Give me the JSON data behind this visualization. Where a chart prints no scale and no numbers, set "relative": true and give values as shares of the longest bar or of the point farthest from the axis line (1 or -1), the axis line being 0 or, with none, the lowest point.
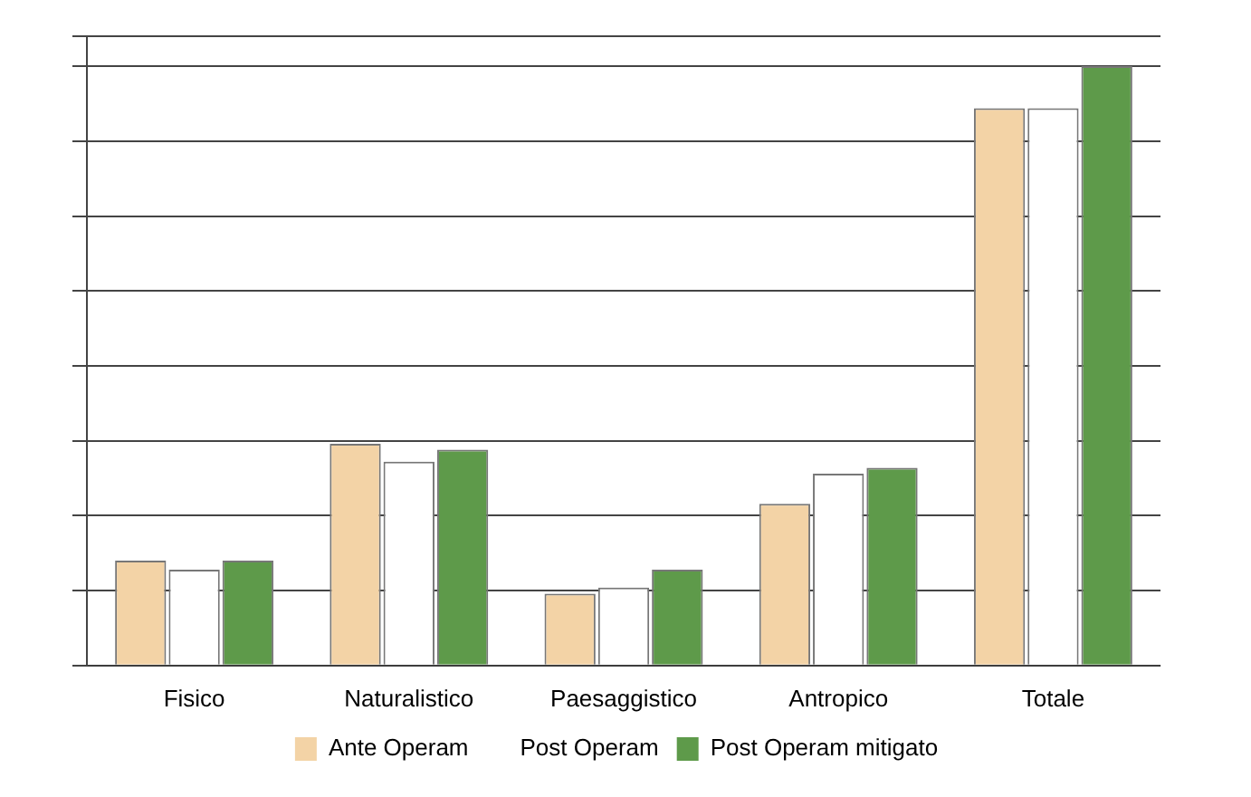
{
  "chart_data": {
    "type": "bar",
    "relative": true,
    "categories": [
      "Fisico",
      "Naturalistico",
      "Paesaggistico",
      "Antropico",
      "Totale"
    ],
    "series": [
      {
        "name": "Ante Operam",
        "color": "#f3d3a6",
        "values": [
          0.175,
          0.37,
          0.12,
          0.27,
          0.93
        ]
      },
      {
        "name": "Post Operam",
        "color": "#ffffff",
        "values": [
          0.16,
          0.34,
          0.13,
          0.32,
          0.93
        ]
      },
      {
        "name": "Post Operam mitigato",
        "color": "#5e9a4a",
        "values": [
          0.175,
          0.36,
          0.16,
          0.33,
          1
        ]
      }
    ],
    "grid": "y",
    "legend": "bottom"
  }
}
